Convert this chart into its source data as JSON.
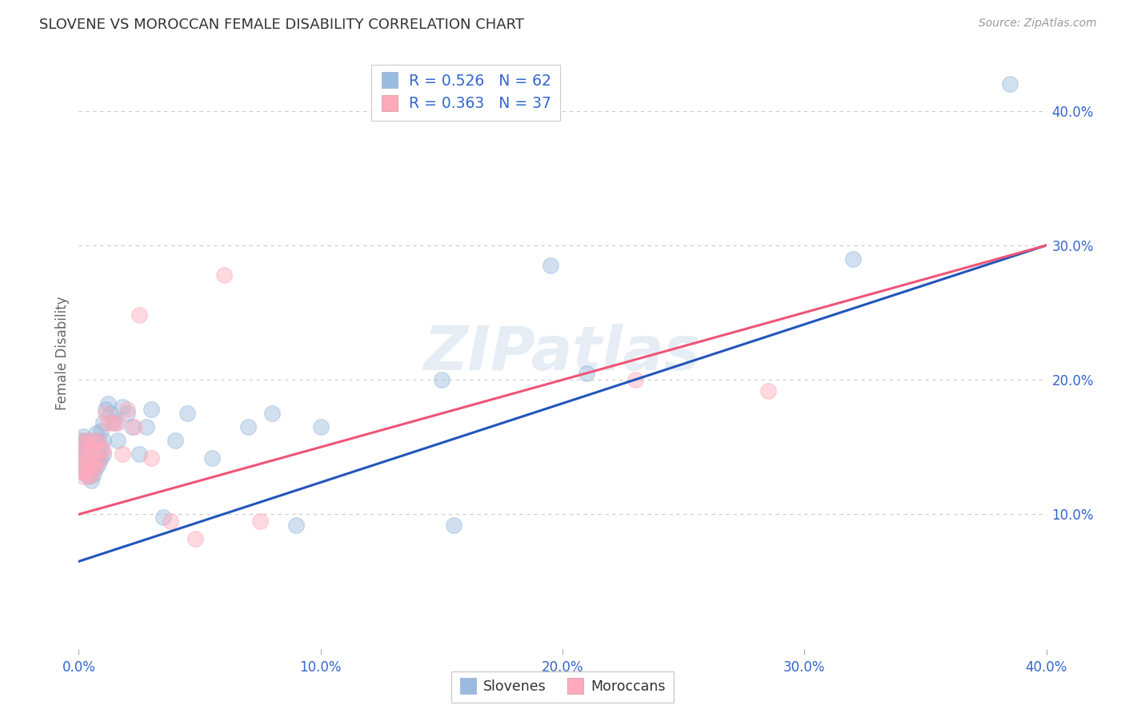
{
  "title": "SLOVENE VS MOROCCAN FEMALE DISABILITY CORRELATION CHART",
  "source": "Source: ZipAtlas.com",
  "ylabel": "Female Disability",
  "watermark": "ZIPatlas",
  "xlim": [
    0.0,
    0.4
  ],
  "ylim": [
    0.0,
    0.44
  ],
  "xtick_vals": [
    0.0,
    0.1,
    0.2,
    0.3,
    0.4
  ],
  "xtick_labels": [
    "0.0%",
    "10.0%",
    "20.0%",
    "30.0%",
    "40.0%"
  ],
  "ytick_vals": [
    0.1,
    0.2,
    0.3,
    0.4
  ],
  "ytick_labels": [
    "10.0%",
    "20.0%",
    "30.0%",
    "40.0%"
  ],
  "blue_R": "0.526",
  "blue_N": "62",
  "pink_R": "0.363",
  "pink_N": "37",
  "blue_color": "#99BBDD",
  "pink_color": "#FFAABC",
  "blue_line_color": "#2255BB",
  "pink_line_color": "#EE5577",
  "grid_color": "#CCCCCC",
  "background_color": "#FFFFFF",
  "blue_line_x0": 0.0,
  "blue_line_y0": 0.065,
  "blue_line_x1": 0.4,
  "blue_line_y1": 0.3,
  "pink_line_x0": 0.0,
  "pink_line_y0": 0.1,
  "pink_line_x1": 0.4,
  "pink_line_y1": 0.3,
  "blue_x": [
    0.001,
    0.001,
    0.001,
    0.002,
    0.002,
    0.002,
    0.002,
    0.003,
    0.003,
    0.003,
    0.003,
    0.004,
    0.004,
    0.004,
    0.004,
    0.005,
    0.005,
    0.005,
    0.005,
    0.006,
    0.006,
    0.006,
    0.006,
    0.007,
    0.007,
    0.007,
    0.007,
    0.008,
    0.008,
    0.008,
    0.009,
    0.009,
    0.009,
    0.01,
    0.01,
    0.01,
    0.011,
    0.012,
    0.013,
    0.014,
    0.015,
    0.016,
    0.018,
    0.02,
    0.022,
    0.025,
    0.028,
    0.03,
    0.035,
    0.04,
    0.045,
    0.055,
    0.07,
    0.08,
    0.09,
    0.1,
    0.15,
    0.155,
    0.195,
    0.21,
    0.32,
    0.385
  ],
  "blue_y": [
    0.14,
    0.148,
    0.155,
    0.135,
    0.142,
    0.15,
    0.158,
    0.13,
    0.138,
    0.145,
    0.155,
    0.128,
    0.135,
    0.142,
    0.15,
    0.125,
    0.133,
    0.14,
    0.15,
    0.13,
    0.138,
    0.145,
    0.155,
    0.135,
    0.142,
    0.15,
    0.16,
    0.138,
    0.145,
    0.155,
    0.142,
    0.15,
    0.162,
    0.145,
    0.155,
    0.168,
    0.178,
    0.182,
    0.175,
    0.17,
    0.168,
    0.155,
    0.18,
    0.175,
    0.165,
    0.145,
    0.165,
    0.178,
    0.098,
    0.155,
    0.175,
    0.142,
    0.165,
    0.175,
    0.092,
    0.165,
    0.2,
    0.092,
    0.285,
    0.205,
    0.29,
    0.42
  ],
  "pink_x": [
    0.001,
    0.001,
    0.002,
    0.002,
    0.002,
    0.003,
    0.003,
    0.003,
    0.004,
    0.004,
    0.004,
    0.005,
    0.005,
    0.005,
    0.006,
    0.006,
    0.007,
    0.007,
    0.008,
    0.008,
    0.009,
    0.01,
    0.011,
    0.012,
    0.014,
    0.016,
    0.018,
    0.02,
    0.023,
    0.025,
    0.03,
    0.038,
    0.048,
    0.06,
    0.075,
    0.23,
    0.285
  ],
  "pink_y": [
    0.132,
    0.145,
    0.128,
    0.14,
    0.155,
    0.132,
    0.142,
    0.153,
    0.128,
    0.138,
    0.15,
    0.13,
    0.142,
    0.155,
    0.135,
    0.148,
    0.138,
    0.153,
    0.14,
    0.155,
    0.148,
    0.148,
    0.175,
    0.168,
    0.168,
    0.168,
    0.145,
    0.178,
    0.165,
    0.248,
    0.142,
    0.095,
    0.082,
    0.278,
    0.095,
    0.2,
    0.192
  ]
}
